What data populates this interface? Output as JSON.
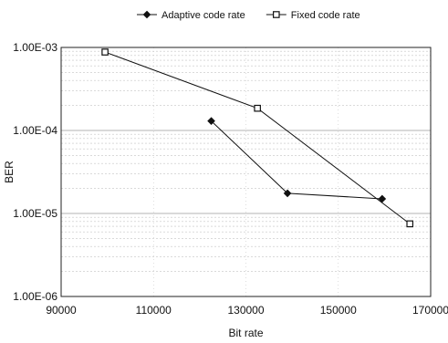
{
  "chart_data": {
    "type": "line",
    "xlabel": "Bit rate",
    "ylabel": "BER",
    "xlim": [
      90000,
      170000
    ],
    "ylim": [
      1e-06,
      0.001
    ],
    "yscale": "log",
    "x_ticks": [
      90000,
      110000,
      130000,
      150000,
      170000
    ],
    "x_tick_labels": [
      "90000",
      "110000",
      "130000",
      "150000",
      "170000"
    ],
    "y_ticks": [
      1e-06,
      1e-05,
      0.0001,
      0.001
    ],
    "y_tick_labels": [
      "1.00E-06",
      "1.00E-05",
      "1.00E-04",
      "1.00E-03"
    ],
    "grid": true,
    "legend_position": "top",
    "series": [
      {
        "name": "Adaptive code rate",
        "marker": "diamond",
        "color": "#111111",
        "x": [
          122500,
          139000,
          159500
        ],
        "y": [
          0.00013,
          1.75e-05,
          1.5e-05
        ]
      },
      {
        "name": "Fixed code rate",
        "marker": "square",
        "color": "#111111",
        "x": [
          99500,
          132500,
          165500
        ],
        "y": [
          0.00088,
          0.000185,
          7.5e-06
        ]
      }
    ]
  }
}
